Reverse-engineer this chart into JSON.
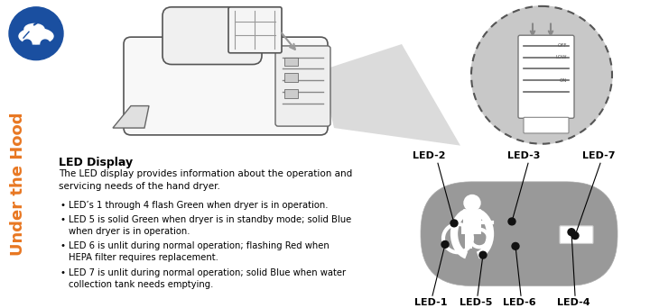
{
  "title": "LED Display",
  "subtitle": "The LED display provides information about the operation and\nservicing needs of the hand dryer.",
  "bullets": [
    "LED’s 1 through 4 flash Green when dryer is in operation.",
    "LED 5 is solid Green when dryer is in standby mode; solid Blue\nwhen dryer is in operation.",
    "LED 6 is unlit during normal operation; flashing Red when\nHEPA filter requires replacement.",
    "LED 7 is unlit during normal operation; solid Blue when water\ncollection tank needs emptying."
  ],
  "side_text": "Under the Hood",
  "side_text_color": "#E87722",
  "bg_color": "#ffffff",
  "panel_bg": "#999999",
  "icon_color": "#1a4fa0",
  "title_fontsize": 9,
  "body_fontsize": 7.5,
  "side_fontsize": 13,
  "led_dot_color": "#111111",
  "label_fontsize": 8,
  "label_fontweight": "bold"
}
